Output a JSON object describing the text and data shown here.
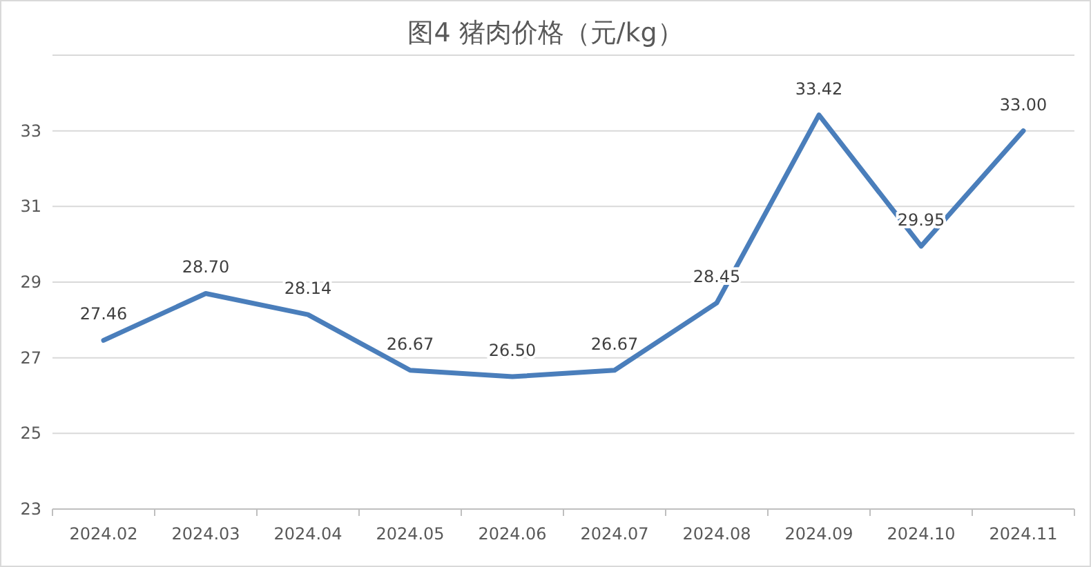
{
  "chart_data": {
    "type": "line",
    "title": "图4  猪肉价格（元/kg）",
    "categories": [
      "2024.02",
      "2024.03",
      "2024.04",
      "2024.05",
      "2024.06",
      "2024.07",
      "2024.08",
      "2024.09",
      "2024.10",
      "2024.11"
    ],
    "series": [
      {
        "color": "#4a7ebb",
        "values": [
          27.46,
          28.7,
          28.14,
          26.67,
          26.5,
          26.67,
          28.45,
          33.42,
          29.95,
          33.0
        ],
        "value_labels": [
          "27.46",
          "28.70",
          "28.14",
          "26.67",
          "26.50",
          "26.67",
          "28.45",
          "33.42",
          "29.95",
          "33.00"
        ]
      }
    ],
    "ylim": [
      23,
      35
    ],
    "yticks": [
      23,
      25,
      27,
      29,
      31,
      33,
      {
        "value": 35,
        "label": null
      }
    ],
    "grid": "y",
    "marker": "none",
    "line_style": "solid"
  }
}
